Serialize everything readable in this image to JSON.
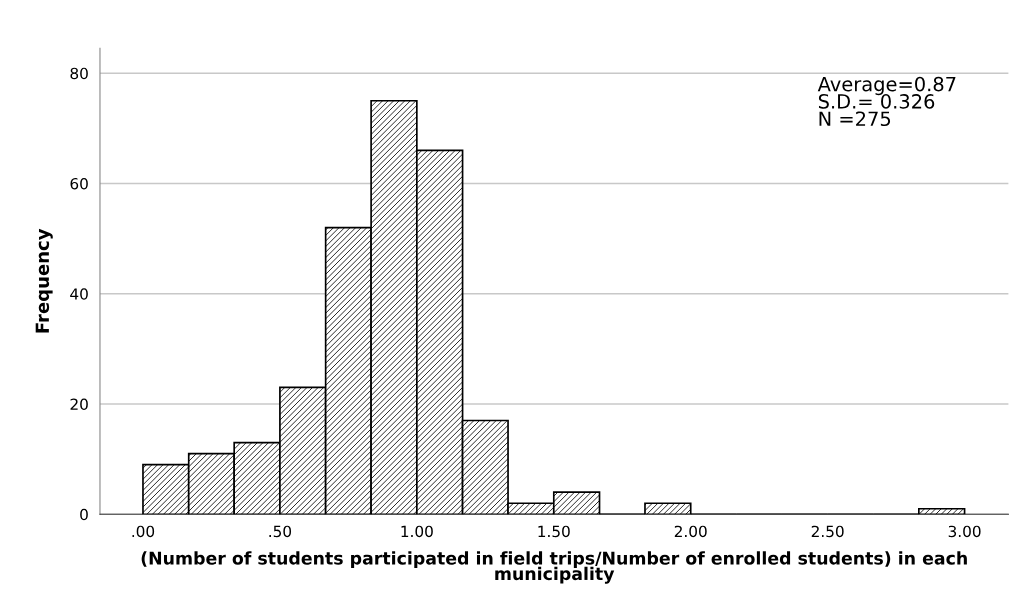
{
  "chart_data": {
    "type": "histogram",
    "xlabel": "(Number of students participated in field trips/Number of enrolled students) in each municipality",
    "ylabel": "Frequency",
    "bins": [
      0,
      0.167,
      0.333,
      0.5,
      0.667,
      0.833,
      1.0,
      1.167,
      1.333,
      1.5,
      1.667,
      1.833,
      2.0,
      2.167,
      2.333,
      2.5,
      2.667,
      2.833,
      3.0
    ],
    "values": [
      9,
      11,
      13,
      23,
      52,
      75,
      66,
      17,
      2,
      4,
      0,
      2,
      0,
      0,
      0,
      0,
      0,
      1
    ],
    "color": "#000000",
    "xlim": [
      -0.157,
      3.16
    ],
    "ylim": [
      0,
      84.5
    ],
    "xticks": [
      {
        "value": 0,
        "label": ".00"
      },
      {
        "value": 0.5,
        "label": ".50"
      },
      {
        "value": 1.0,
        "label": "1.00"
      },
      {
        "value": 1.5,
        "label": "1.50"
      },
      {
        "value": 2.0,
        "label": "2.00"
      },
      {
        "value": 2.5,
        "label": "2.50"
      },
      {
        "value": 3.0,
        "label": "3.00"
      }
    ],
    "yticks": [
      0,
      20,
      40,
      60,
      80
    ],
    "grid": "y",
    "annotations": [
      "Average=0.87\nS.D.= 0.326\nN =275"
    ]
  }
}
